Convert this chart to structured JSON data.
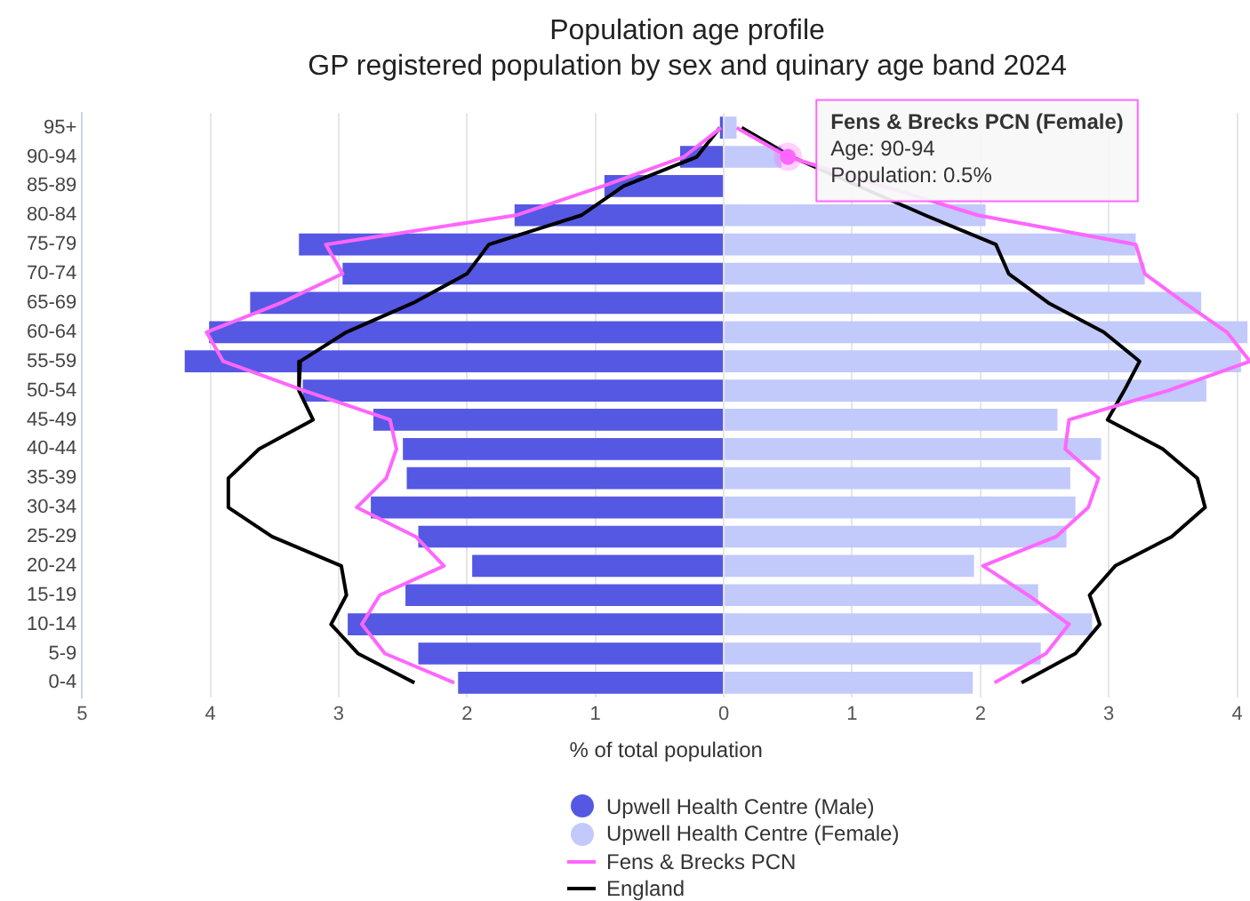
{
  "chart_data": {
    "type": "bar",
    "title": "Population age profile",
    "subtitle": "GP registered population by sex and quinary age band 2024",
    "xlabel": "% of total population",
    "orientation": "horizontal",
    "stacked": true,
    "grid": "x",
    "legend": "bottom",
    "categories": [
      "95+",
      "90-94",
      "85-89",
      "80-84",
      "75-79",
      "70-74",
      "65-69",
      "60-64",
      "55-59",
      "50-54",
      "45-49",
      "40-44",
      "35-39",
      "30-34",
      "25-29",
      "20-24",
      "15-19",
      "10-14",
      "5-9",
      "0-4"
    ],
    "xlim": [
      -5,
      4.1
    ],
    "xticks": [
      {
        "value": -5,
        "label": "5"
      },
      {
        "value": -4,
        "label": "4"
      },
      {
        "value": -3,
        "label": "3"
      },
      {
        "value": -2,
        "label": "2"
      },
      {
        "value": -1,
        "label": "1"
      },
      0,
      1,
      2,
      3,
      4
    ],
    "series": [
      {
        "name": "Upwell Health Centre (Male)",
        "color": "#5558e3",
        "values": [
          -0.03,
          -0.34,
          -0.93,
          -1.63,
          -3.31,
          -2.97,
          -3.69,
          -4.01,
          -4.2,
          -3.28,
          -2.73,
          -2.5,
          -2.47,
          -2.75,
          -2.38,
          -1.96,
          -2.48,
          -2.93,
          -2.38,
          -2.07
        ]
      },
      {
        "name": "Upwell Health Centre (Female)",
        "color": "#c2c9fb",
        "values": [
          0.1,
          0.45,
          null,
          2.04,
          3.21,
          3.28,
          3.72,
          4.08,
          4.03,
          3.76,
          2.6,
          2.94,
          2.7,
          2.74,
          2.67,
          1.95,
          2.45,
          2.87,
          2.47,
          1.94
        ]
      },
      {
        "name": "Fens & Brecks PCN",
        "type": "line",
        "color": "#ff66ff",
        "values": [
          -0.02,
          -0.31,
          -0.94,
          -1.62,
          -3.1,
          -2.97,
          -3.45,
          -4.03,
          -3.9,
          -3.27,
          -2.6,
          -2.55,
          -2.63,
          -2.86,
          -2.4,
          -2.18,
          -2.68,
          -2.82,
          -2.64,
          -2.1
        ]
      },
      {
        "type": "line",
        "color": "#ff66ff",
        "values": [
          0.1,
          0.5,
          null,
          1.98,
          3.21,
          3.28,
          3.59,
          3.92,
          4.1,
          3.46,
          2.69,
          2.66,
          2.92,
          2.84,
          2.59,
          2.02,
          2.37,
          2.69,
          2.51,
          2.11
        ]
      },
      {
        "name": "England",
        "type": "line",
        "color": "#000000",
        "values": [
          -0.03,
          -0.21,
          -0.78,
          -1.11,
          -1.83,
          -2.0,
          -2.42,
          -2.94,
          -3.3,
          -3.31,
          -3.2,
          -3.62,
          -3.86,
          -3.86,
          -3.52,
          -2.98,
          -2.94,
          -3.06,
          -2.85,
          -2.41
        ]
      },
      {
        "type": "line",
        "color": "#000000",
        "values": [
          0.14,
          0.53,
          null,
          1.57,
          2.12,
          2.22,
          2.53,
          2.96,
          3.24,
          3.12,
          2.99,
          3.42,
          3.69,
          3.75,
          3.49,
          3.05,
          2.85,
          2.93,
          2.74,
          2.32
        ]
      }
    ],
    "annotations": [
      {
        "text": "Fens & Brecks PCN (Female)\nAge: 90-94\nPopulation: 0.5%",
        "x": 0.5,
        "y": "90-94"
      }
    ]
  }
}
